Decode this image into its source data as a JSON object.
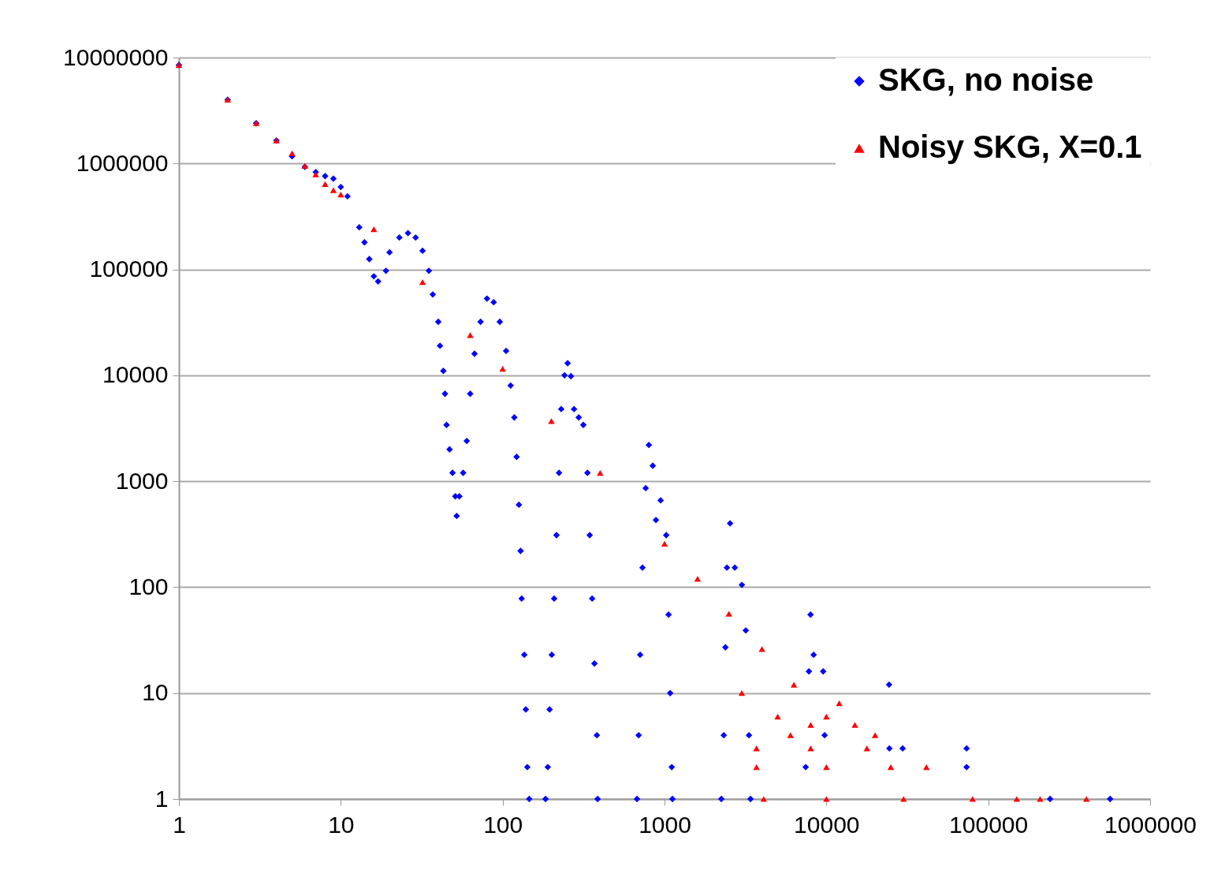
{
  "chart_data": {
    "type": "scatter",
    "log": "xy",
    "xlim": [
      1,
      1000000
    ],
    "ylim": [
      1,
      10000000
    ],
    "xticks": [
      1,
      10,
      100,
      1000,
      10000,
      100000,
      1000000
    ],
    "yticks": [
      1,
      10,
      100,
      1000,
      10000,
      100000,
      1000000,
      10000000
    ],
    "grid": "y",
    "legend": "top right",
    "series": [
      {
        "name": "SKG, no noise",
        "color": "#0000ff",
        "marker": "diamond",
        "x": [
          1,
          2,
          3,
          4,
          5,
          6,
          7,
          8,
          9,
          10,
          11,
          13,
          14,
          15,
          16,
          17,
          19,
          20,
          23,
          26,
          29,
          32,
          35,
          37,
          40,
          41,
          43,
          44,
          45,
          47,
          49,
          51,
          52,
          54,
          57,
          60,
          63,
          67,
          73,
          80,
          88,
          96,
          105,
          112,
          118,
          122,
          126,
          129,
          131,
          136,
          139,
          142,
          146,
          184,
          190,
          195,
          201,
          208,
          215,
          223,
          230,
          241,
          252,
          264,
          276,
          295,
          315,
          334,
          345,
          357,
          369,
          382,
          386,
          676,
          692,
          707,
          731,
          765,
          800,
          846,
          885,
          946,
          1024,
          1059,
          1083,
          1108,
          1119,
          2244,
          2322,
          2377,
          2429,
          2541,
          2718,
          3006,
          3177,
          3324,
          3398,
          7450,
          7800,
          7980,
          8340,
          9550,
          9750,
          24500,
          24400,
          29600,
          73500,
          73500,
          241000,
          566000
        ],
        "values": [
          8500000,
          4000000,
          2400000,
          1650000,
          1170000,
          930000,
          830000,
          760000,
          720000,
          600000,
          490000,
          250000,
          180000,
          125000,
          86000,
          77000,
          97000,
          145000,
          200000,
          220000,
          200000,
          150000,
          97000,
          58000,
          32000,
          19000,
          11000,
          6700,
          3400,
          2000,
          1200,
          720,
          470,
          720,
          1200,
          2400,
          6700,
          16000,
          32000,
          53000,
          49000,
          32000,
          17000,
          8000,
          4000,
          1700,
          600,
          220,
          78,
          23,
          7,
          2,
          1,
          1,
          2,
          7,
          23,
          78,
          310,
          1200,
          4800,
          10000,
          13000,
          9800,
          4800,
          4000,
          3400,
          1200,
          310,
          78,
          19,
          4,
          1,
          1,
          4,
          23,
          153,
          860,
          2200,
          1400,
          430,
          660,
          310,
          55,
          10,
          2,
          1,
          1,
          4,
          27,
          153,
          400,
          153,
          105,
          39,
          4,
          1,
          2,
          16,
          55,
          23,
          16,
          4,
          3,
          12,
          3,
          3,
          2,
          1,
          1
        ]
      },
      {
        "name": "Noisy SKG, X=0.1",
        "color": "#ff0000",
        "marker": "triangle",
        "x": [
          1,
          2,
          3,
          4,
          5,
          6,
          7,
          8,
          9,
          10,
          16,
          32,
          63,
          100,
          200,
          400,
          1000,
          1600,
          2500,
          3000,
          4000,
          5000,
          6000,
          6300,
          8000,
          10000,
          12000,
          15000,
          20000,
          3700,
          8000,
          17800,
          3700,
          10000,
          25000,
          41500,
          4100,
          10000,
          30000,
          80000,
          150000,
          209000,
          404000
        ],
        "values": [
          8500000,
          4000000,
          2400000,
          1650000,
          1250000,
          950000,
          790000,
          640000,
          560000,
          510000,
          240000,
          76000,
          24000,
          11500,
          3700,
          1200,
          257,
          120,
          56,
          10,
          26,
          6,
          4,
          12,
          5,
          6,
          8,
          5,
          4,
          3,
          3,
          3,
          2,
          2,
          2,
          2,
          1,
          1,
          1,
          1,
          1,
          1,
          1
        ]
      }
    ]
  }
}
